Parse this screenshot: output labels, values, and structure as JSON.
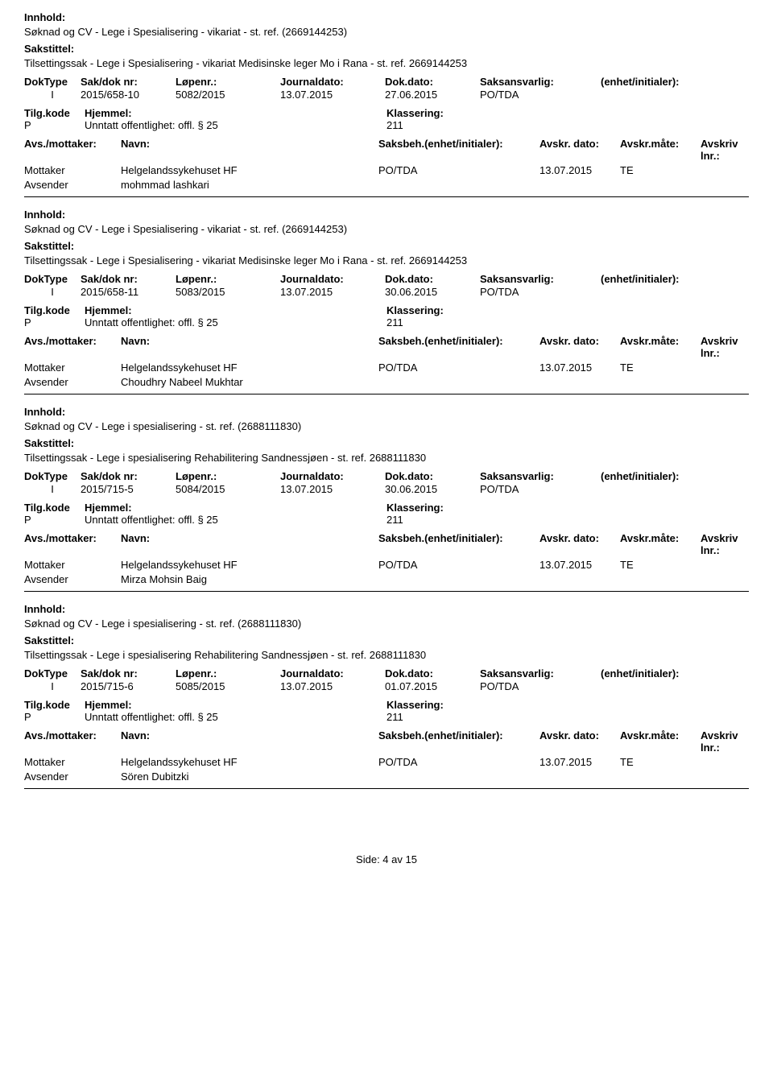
{
  "labels": {
    "innhold": "Innhold:",
    "sakstittel": "Sakstittel:",
    "doktype": "DokType",
    "sak_dok_nr": "Sak/dok nr:",
    "lopenr": "Løpenr.:",
    "journaldato": "Journaldato:",
    "dokdato": "Dok.dato:",
    "saksansvarlig": "Saksansvarlig:",
    "enhet_init": "(enhet/initialer):",
    "tilgkode": "Tilg.kode",
    "hjemmel": "Hjemmel:",
    "klassering": "Klassering:",
    "avs_mottaker": "Avs./mottaker:",
    "navn": "Navn:",
    "saksbeh": "Saksbeh.",
    "saksbeh_enhet": "(enhet/initialer):",
    "avskr_dato": "Avskr. dato:",
    "avskr_mate": "Avskr.måte:",
    "avskriv_lnr": "Avskriv lnr.:",
    "mottaker": "Mottaker",
    "avsender": "Avsender"
  },
  "entries": [
    {
      "innhold": "Søknad og CV - Lege i Spesialisering - vikariat - st. ref. (2669144253)",
      "sakstittel": "Tilsettingssak - Lege i Spesialisering - vikariat Medisinske leger Mo i Rana - st. ref. 2669144253",
      "doktype": "I",
      "sak_dok_nr": "2015/658-10",
      "lopenr": "5082/2015",
      "journaldato": "13.07.2015",
      "dokdato": "27.06.2015",
      "saksansvarlig": "PO/TDA",
      "tilgkode": "P",
      "hjemmel": "Unntatt offentlighet: offl. § 25",
      "klassering": "211",
      "mottaker_navn": "Helgelandssykehuset HF",
      "saksbeh_val": "PO/TDA",
      "avskr_dato": "13.07.2015",
      "avskr_mate": "TE",
      "avsender_navn": "mohmmad lashkari"
    },
    {
      "innhold": "Søknad og CV - Lege i Spesialisering - vikariat - st. ref. (2669144253)",
      "sakstittel": "Tilsettingssak - Lege i Spesialisering - vikariat Medisinske leger Mo i Rana - st. ref. 2669144253",
      "doktype": "I",
      "sak_dok_nr": "2015/658-11",
      "lopenr": "5083/2015",
      "journaldato": "13.07.2015",
      "dokdato": "30.06.2015",
      "saksansvarlig": "PO/TDA",
      "tilgkode": "P",
      "hjemmel": "Unntatt offentlighet: offl. § 25",
      "klassering": "211",
      "mottaker_navn": "Helgelandssykehuset HF",
      "saksbeh_val": "PO/TDA",
      "avskr_dato": "13.07.2015",
      "avskr_mate": "TE",
      "avsender_navn": "Choudhry Nabeel Mukhtar"
    },
    {
      "innhold": "Søknad og CV - Lege i spesialisering - st. ref. (2688111830)",
      "sakstittel": "Tilsettingssak - Lege i spesialisering Rehabilitering Sandnessjøen - st. ref. 2688111830",
      "doktype": "I",
      "sak_dok_nr": "2015/715-5",
      "lopenr": "5084/2015",
      "journaldato": "13.07.2015",
      "dokdato": "30.06.2015",
      "saksansvarlig": "PO/TDA",
      "tilgkode": "P",
      "hjemmel": "Unntatt offentlighet: offl. § 25",
      "klassering": "211",
      "mottaker_navn": "Helgelandssykehuset HF",
      "saksbeh_val": "PO/TDA",
      "avskr_dato": "13.07.2015",
      "avskr_mate": "TE",
      "avsender_navn": "Mirza Mohsin Baig"
    },
    {
      "innhold": "Søknad og CV - Lege i spesialisering - st. ref. (2688111830)",
      "sakstittel": "Tilsettingssak - Lege i spesialisering Rehabilitering Sandnessjøen - st. ref. 2688111830",
      "doktype": "I",
      "sak_dok_nr": "2015/715-6",
      "lopenr": "5085/2015",
      "journaldato": "13.07.2015",
      "dokdato": "01.07.2015",
      "saksansvarlig": "PO/TDA",
      "tilgkode": "P",
      "hjemmel": "Unntatt offentlighet: offl. § 25",
      "klassering": "211",
      "mottaker_navn": "Helgelandssykehuset HF",
      "saksbeh_val": "PO/TDA",
      "avskr_dato": "13.07.2015",
      "avskr_mate": "TE",
      "avsender_navn": "Sören Dubitzki"
    }
  ],
  "footer": "Side: 4 av 15"
}
